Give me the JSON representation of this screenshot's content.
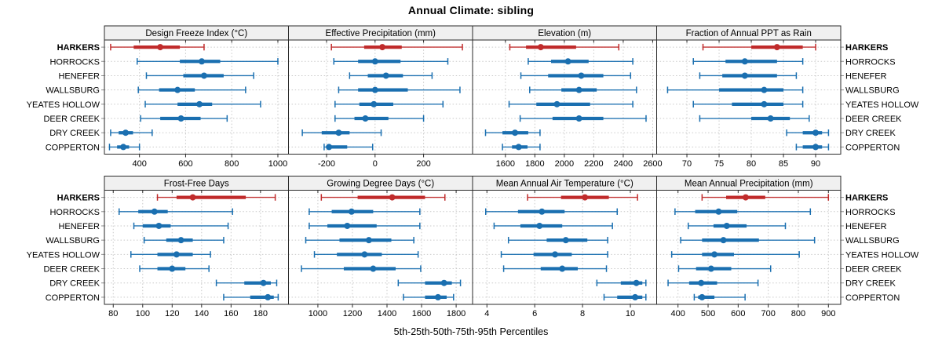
{
  "title": "Annual Climate: sibling",
  "caption": "5th-25th-50th-75th-95th Percentiles",
  "sites": [
    "HARKERS",
    "HORROCKS",
    "HENEFER",
    "WALLSBURG",
    "YEATES HOLLOW",
    "DEER CREEK",
    "DRY CREEK",
    "COPPERTON"
  ],
  "highlight_site": "HARKERS",
  "colors": {
    "highlight": "#c02b2b",
    "normal": "#1a6fb0",
    "strip_bg": "#f0f0f0",
    "panel_bg": "#ffffff",
    "border": "#2a2a2a",
    "grid": "#c9c9c9",
    "outer_tick": "#8f8f8f",
    "text": "#000000"
  },
  "chart_data": {
    "type": "scatter",
    "variant": "five-number-summary dot-whisker trellis (2 rows x 4 cols)",
    "percentiles": [
      5,
      25,
      50,
      75,
      95
    ],
    "rows": [
      "HARKERS",
      "HORROCKS",
      "HENEFER",
      "WALLSBURG",
      "YEATES HOLLOW",
      "DEER CREEK",
      "DRY CREEK",
      "COPPERTON"
    ],
    "legend": "HARKERS highlighted in red; all other sites blue",
    "panels": [
      {
        "title": "Design Freeze Index (°C)",
        "grid_row": 0,
        "grid_col": 0,
        "xlim": [
          248,
          1046
        ],
        "ticks": [
          400,
          600,
          800,
          1000
        ],
        "values": [
          [
            275,
            375,
            490,
            575,
            680
          ],
          [
            390,
            575,
            670,
            750,
            1000
          ],
          [
            430,
            590,
            680,
            765,
            895
          ],
          [
            395,
            485,
            565,
            640,
            860
          ],
          [
            425,
            565,
            660,
            715,
            925
          ],
          [
            405,
            490,
            580,
            665,
            780
          ],
          [
            275,
            310,
            340,
            372,
            455
          ],
          [
            270,
            303,
            330,
            355,
            400
          ]
        ]
      },
      {
        "title": "Effective Precipitation (mm)",
        "grid_row": 0,
        "grid_col": 1,
        "xlim": [
          -357,
          402
        ],
        "ticks": [
          -200,
          0,
          200
        ],
        "values": [
          [
            -180,
            -45,
            30,
            110,
            360
          ],
          [
            -170,
            -70,
            0,
            105,
            300
          ],
          [
            -105,
            -30,
            45,
            115,
            235
          ],
          [
            -150,
            -70,
            0,
            135,
            350
          ],
          [
            -165,
            -65,
            -5,
            75,
            280
          ],
          [
            -165,
            -85,
            -40,
            55,
            200
          ],
          [
            -300,
            -220,
            -150,
            -105,
            25
          ],
          [
            -210,
            -200,
            -190,
            -115,
            -10
          ]
        ]
      },
      {
        "title": "Elevation (m)",
        "grid_row": 0,
        "grid_col": 2,
        "xlim": [
          1377,
          2627
        ],
        "ticks": [
          1600,
          1800,
          2000,
          2200,
          2400,
          2600
        ],
        "values": [
          [
            1630,
            1740,
            1840,
            2080,
            2370
          ],
          [
            1755,
            1910,
            2025,
            2165,
            2465
          ],
          [
            1705,
            1890,
            2115,
            2265,
            2450
          ],
          [
            1765,
            1980,
            2100,
            2220,
            2490
          ],
          [
            1625,
            1810,
            1950,
            2175,
            2465
          ],
          [
            1700,
            1920,
            2100,
            2265,
            2555
          ],
          [
            1465,
            1580,
            1665,
            1755,
            1835
          ],
          [
            1580,
            1645,
            1690,
            1750,
            1835
          ]
        ]
      },
      {
        "title": "Fraction of Annual PPT as Rain",
        "grid_row": 0,
        "grid_col": 3,
        "xlim": [
          65.3,
          93.9
        ],
        "ticks": [
          70,
          75,
          80,
          85,
          90
        ],
        "values": [
          [
            72.5,
            80,
            84,
            88,
            90
          ],
          [
            71,
            76,
            79,
            84,
            88
          ],
          [
            72,
            75.5,
            79,
            84,
            87
          ],
          [
            67,
            75,
            82,
            85,
            88
          ],
          [
            71,
            77,
            82,
            85,
            88
          ],
          [
            72,
            80,
            83,
            86,
            89
          ],
          [
            85.5,
            88,
            90,
            91,
            92
          ],
          [
            87,
            88,
            90,
            91,
            92
          ]
        ]
      },
      {
        "title": "Frost-Free Days",
        "grid_row": 1,
        "grid_col": 0,
        "xlim": [
          74,
          199
        ],
        "ticks": [
          80,
          100,
          120,
          140,
          160,
          180
        ],
        "values": [
          [
            110,
            123,
            134,
            170,
            190
          ],
          [
            84,
            97,
            108,
            117,
            161
          ],
          [
            94,
            100,
            111,
            119,
            158
          ],
          [
            101,
            116,
            126,
            134,
            155
          ],
          [
            92,
            110,
            123,
            134,
            146
          ],
          [
            98,
            110,
            120,
            129,
            145
          ],
          [
            150,
            169,
            182,
            187,
            191
          ],
          [
            155,
            173,
            185,
            189,
            192
          ]
        ]
      },
      {
        "title": "Growing Degree Days (°C)",
        "grid_row": 1,
        "grid_col": 1,
        "xlim": [
          830,
          1895
        ],
        "ticks": [
          1000,
          1200,
          1400,
          1600,
          1800
        ],
        "values": [
          [
            1020,
            1230,
            1430,
            1620,
            1735
          ],
          [
            950,
            1080,
            1195,
            1320,
            1590
          ],
          [
            950,
            1055,
            1170,
            1340,
            1590
          ],
          [
            930,
            1125,
            1295,
            1425,
            1555
          ],
          [
            980,
            1110,
            1270,
            1370,
            1580
          ],
          [
            905,
            1150,
            1320,
            1450,
            1595
          ],
          [
            1465,
            1620,
            1730,
            1775,
            1825
          ],
          [
            1495,
            1620,
            1695,
            1745,
            1785
          ]
        ]
      },
      {
        "title": "Mean Annual Air Temperature (°C)",
        "grid_row": 1,
        "grid_col": 2,
        "xlim": [
          3.4,
          11.1
        ],
        "ticks": [
          4,
          6,
          8,
          10
        ],
        "values": [
          [
            5.7,
            7.1,
            8.1,
            9.1,
            10.3
          ],
          [
            3.95,
            5.3,
            6.3,
            7.25,
            9.45
          ],
          [
            4.3,
            5.4,
            6.2,
            7.15,
            9.25
          ],
          [
            4.9,
            6.5,
            7.3,
            8.2,
            9.05
          ],
          [
            4.6,
            5.95,
            6.85,
            7.55,
            9.05
          ],
          [
            4.7,
            6.25,
            7.15,
            7.8,
            9.0
          ],
          [
            8.6,
            9.6,
            10.25,
            10.5,
            10.65
          ],
          [
            8.9,
            9.45,
            10.2,
            10.5,
            10.65
          ]
        ]
      },
      {
        "title": "Mean Annual Precipitation (mm)",
        "grid_row": 1,
        "grid_col": 3,
        "xlim": [
          329,
          941
        ],
        "ticks": [
          400,
          500,
          600,
          700,
          800,
          900
        ],
        "values": [
          [
            480,
            560,
            625,
            690,
            900
          ],
          [
            390,
            457,
            535,
            597,
            840
          ],
          [
            434,
            518,
            562,
            628,
            757
          ],
          [
            409,
            480,
            551,
            669,
            854
          ],
          [
            379,
            480,
            521,
            586,
            803
          ],
          [
            402,
            460,
            510,
            577,
            708
          ],
          [
            367,
            437,
            477,
            530,
            666
          ],
          [
            454,
            467,
            480,
            521,
            623
          ]
        ]
      }
    ]
  }
}
